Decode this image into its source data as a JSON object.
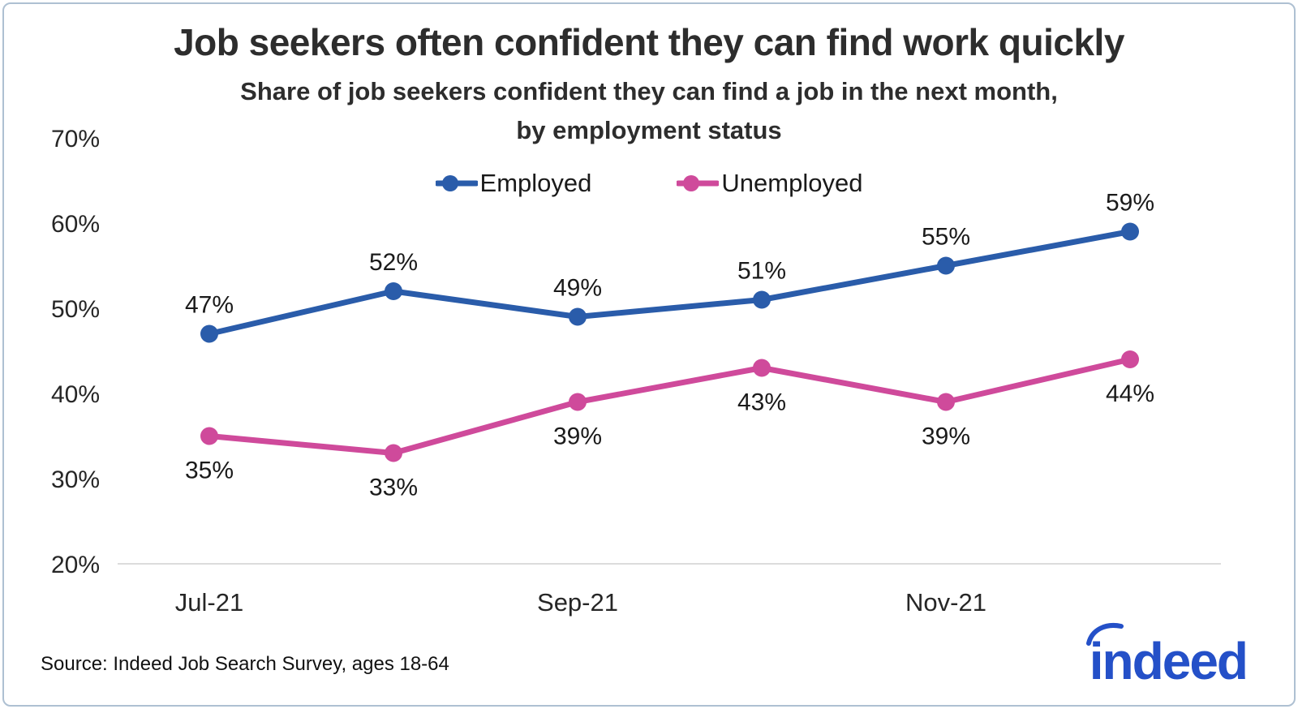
{
  "header": {
    "title_note": "bound from chart_data.title"
  },
  "footer": {
    "source": "Source: Indeed Job Search Survey, ages 18-64",
    "logo_text": "indeed",
    "logo_color": "#2450c8"
  },
  "chart_data": {
    "type": "line",
    "title": "Job seekers often confident they can find work quickly",
    "subtitle_lines": [
      "Share of job seekers confident they can find a job in the next month,",
      "by employment status"
    ],
    "n_points": 6,
    "x_ticks": [
      {
        "index": 0,
        "label": "Jul-21"
      },
      {
        "index": 2,
        "label": "Sep-21"
      },
      {
        "index": 4,
        "label": "Nov-21"
      }
    ],
    "series": [
      {
        "name": "Employed",
        "color": "#2a5caa",
        "values": [
          47,
          52,
          49,
          51,
          55,
          59
        ],
        "value_labels": [
          "47%",
          "52%",
          "49%",
          "51%",
          "55%",
          "59%"
        ],
        "label_position": "above"
      },
      {
        "name": "Unemployed",
        "color": "#cf4a9b",
        "values": [
          35,
          33,
          39,
          43,
          39,
          44
        ],
        "value_labels": [
          "35%",
          "33%",
          "39%",
          "43%",
          "39%",
          "44%"
        ],
        "label_position": "below"
      }
    ],
    "ylim": [
      20,
      70
    ],
    "yticks": [
      20,
      30,
      40,
      50,
      60,
      70
    ],
    "ytick_suffix": "%",
    "grid": false,
    "legend_position": "top-center",
    "axis_color": "#dcdcdc",
    "text_color": "#262626"
  }
}
